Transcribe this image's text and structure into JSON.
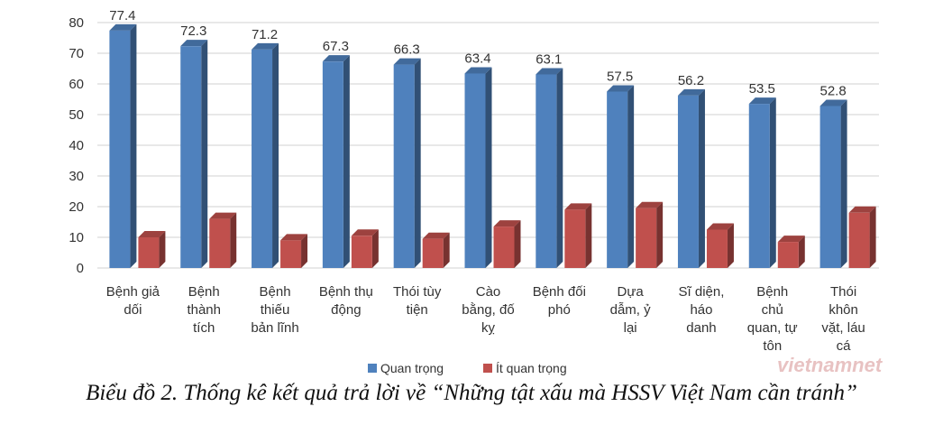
{
  "chart_data": {
    "type": "bar",
    "title": "",
    "xlabel": "",
    "ylabel": "",
    "ylim": [
      0,
      80
    ],
    "yticks": [
      0,
      10,
      20,
      30,
      40,
      50,
      60,
      70,
      80
    ],
    "grid": true,
    "legend_position": "bottom",
    "categories": [
      [
        "Bệnh giả",
        "dối"
      ],
      [
        "Bệnh",
        "thành",
        "tích"
      ],
      [
        "Bệnh",
        "thiếu",
        "bản lĩnh"
      ],
      [
        "Bệnh thụ",
        "động"
      ],
      [
        "Thói tùy",
        "tiện"
      ],
      [
        "Cào",
        "bằng, đố",
        "kỵ"
      ],
      [
        "Bệnh đối",
        "phó"
      ],
      [
        "Dựa",
        "dẫm, ỷ",
        "lại"
      ],
      [
        "Sĩ diện,",
        "háo",
        "danh"
      ],
      [
        "Bệnh",
        "chủ",
        "quan, tự",
        "tôn"
      ],
      [
        "Thói",
        "khôn",
        "vặt, láu",
        "cá"
      ]
    ],
    "series": [
      {
        "name": "Quan trọng",
        "color": "#4f81bd",
        "values": [
          77.4,
          72.3,
          71.2,
          67.3,
          66.3,
          63.4,
          63.1,
          57.5,
          56.2,
          53.5,
          52.8
        ],
        "labels": [
          "77.4",
          "72.3",
          "71.2",
          "67.3",
          "66.3",
          "63.4",
          "63.1",
          "57.5",
          "56.2",
          "53.5",
          "52.8"
        ]
      },
      {
        "name": "Ít quan trọng",
        "color": "#c0504d",
        "values": [
          10,
          16,
          9,
          10.5,
          9.5,
          13.5,
          19,
          19.5,
          12.5,
          8.5,
          18
        ]
      }
    ]
  },
  "caption": "Biểu đồ 2. Thống kê kết quả trả lời về “Những tật xấu mà HSSV Việt Nam cần tránh”",
  "watermark": "vietnamnet"
}
